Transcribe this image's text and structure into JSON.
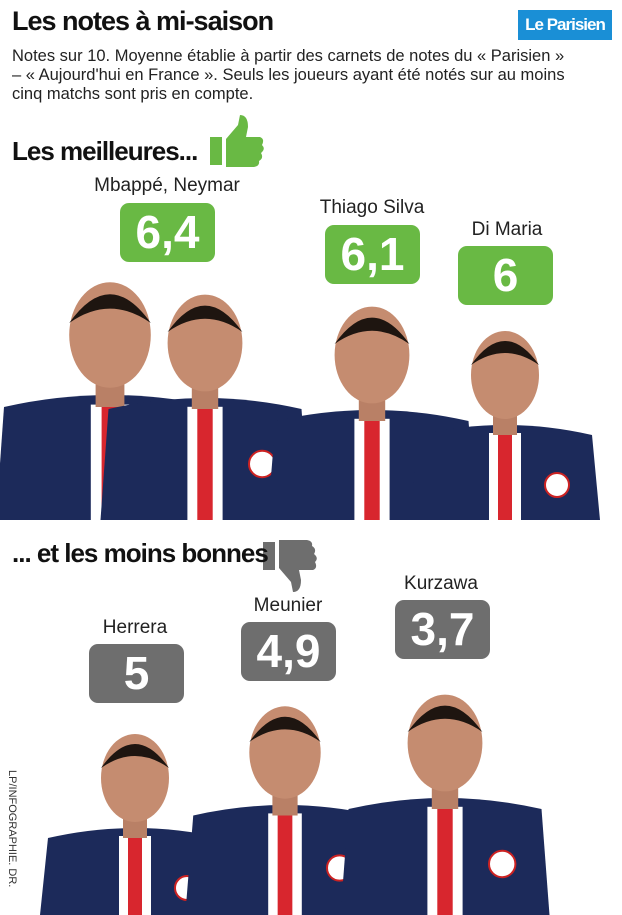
{
  "header": {
    "title": "Les notes à mi-saison",
    "logo": "Le Parisien",
    "subtitle": "Notes sur 10. Moyenne établie à partir des carnets de notes du « Parisien » – « Aujourd'hui en France ». Seuls les joueurs ayant été notés sur au moins cinq matchs sont pris en compte."
  },
  "best": {
    "title": "Les meilleures...",
    "players": [
      {
        "name": "Mbappé, Neymar",
        "rating": "6,4"
      },
      {
        "name": "Thiago Silva",
        "rating": "6,1"
      },
      {
        "name": "Di Maria",
        "rating": "6"
      }
    ]
  },
  "worst": {
    "title": "... et les moins bonnes",
    "players": [
      {
        "name": "Herrera",
        "rating": "5"
      },
      {
        "name": "Meunier",
        "rating": "4,9"
      },
      {
        "name": "Kurzawa",
        "rating": "3,7"
      }
    ]
  },
  "credit": "LP/INFOGRAPHIE. DR."
}
